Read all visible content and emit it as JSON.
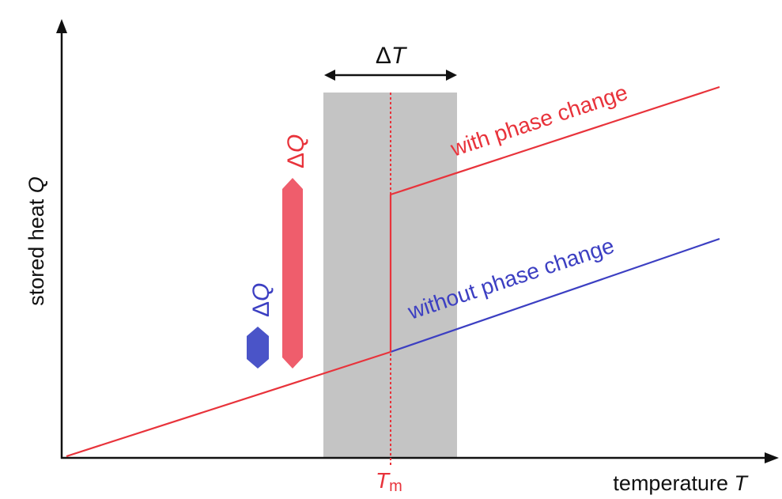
{
  "labels": {
    "y_axis_text": "stored heat ",
    "y_axis_var": "Q",
    "x_axis_text": "temperature ",
    "x_axis_var": "T",
    "delta_T_sym": "Δ",
    "delta_T_var": "T",
    "tm_main": "T",
    "tm_sub": "m",
    "delta_q_red_sym": "Δ",
    "delta_q_red_var": "Q",
    "delta_q_blue_sym": "Δ",
    "delta_q_blue_var": "Q",
    "with_phase_change": "with phase change",
    "without_phase_change": "without phase change"
  },
  "colors": {
    "red": "#e8333b",
    "red_bar": "#ef5d6c",
    "blue": "#3c3fc2",
    "blue_bar": "#4a54c8",
    "gray_band": "#c4c4c4",
    "axis": "#111111"
  }
}
